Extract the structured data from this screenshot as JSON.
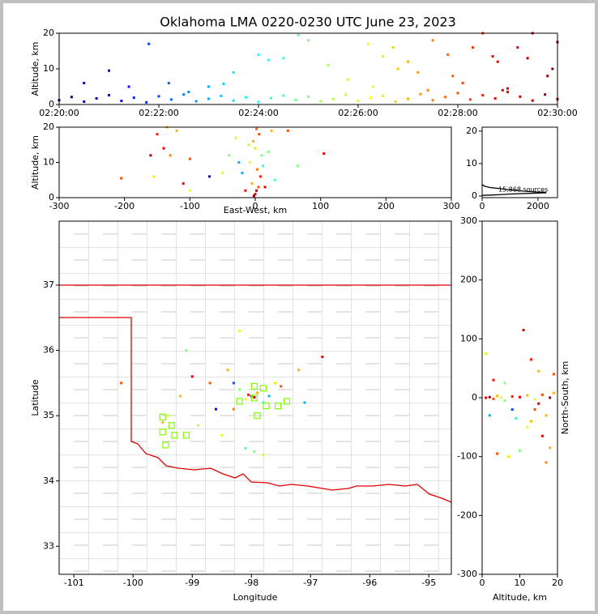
{
  "chart_data": [
    {
      "type": "scatter",
      "title": "Oklahoma LMA 0220-0230 UTC June 23, 2023",
      "ylabel": "Altitude, km",
      "colormap": "jet",
      "xlim": [
        0,
        10
      ],
      "xticks": [
        {
          "value": 0,
          "label": "02:20:00"
        },
        {
          "value": 2,
          "label": "02:22:00"
        },
        {
          "value": 4,
          "label": "02:24:00"
        },
        {
          "value": 6,
          "label": "02:26:00"
        },
        {
          "value": 8,
          "label": "02:28:00"
        },
        {
          "value": 10,
          "label": "02:30:00"
        }
      ],
      "ylim": [
        0,
        20
      ],
      "yticks": [
        0,
        10,
        20
      ],
      "series": [
        {
          "x": [
            0,
            0.25,
            0.5,
            0.75,
            1,
            1.25,
            1.5,
            1.75,
            2,
            2.25,
            2.5,
            2.75,
            3,
            3.25,
            3.5,
            3.75,
            4,
            4.25,
            4.5,
            4.75,
            5,
            5.25,
            5.5,
            5.75,
            6,
            6.25,
            6.5,
            6.75,
            7,
            7.25,
            7.5,
            7.75,
            8,
            8.25,
            8.5,
            8.75,
            9,
            9.25,
            9.5,
            9.75,
            10,
            0.5,
            1,
            1.8,
            2.2,
            3,
            3.5,
            4,
            4.5,
            4.8,
            5.4,
            5.8,
            6.2,
            6.8,
            7.5,
            7.2,
            7.9,
            8.3,
            8.5,
            8.8,
            9,
            9.2,
            9.5,
            9.8,
            10,
            6.5,
            7,
            7.8,
            6.7,
            8.1,
            8.7,
            5,
            4.2,
            3.3,
            2.6,
            1.4,
            9.4,
            9.9,
            6.3,
            7.4,
            8.9
          ],
          "values": [
            1.2,
            2.1,
            0.8,
            1.7,
            2.6,
            1.0,
            1.9,
            0.6,
            2.3,
            1.4,
            2.8,
            0.9,
            1.6,
            2.4,
            1.1,
            2.0,
            0.7,
            1.8,
            2.5,
            1.3,
            2.2,
            0.9,
            1.5,
            2.7,
            1.0,
            1.9,
            2.4,
            0.8,
            1.6,
            2.9,
            1.2,
            2.1,
            3.2,
            1.4,
            2.6,
            1.7,
            3.5,
            2.2,
            1.1,
            2.8,
            1.5,
            6,
            9.5,
            17,
            6,
            5,
            9,
            14,
            13,
            19.5,
            11,
            7,
            17,
            10,
            18,
            9,
            8,
            16,
            20,
            12,
            4.5,
            16,
            20,
            8,
            17.5,
            13.5,
            12,
            14,
            16,
            6,
            13.5,
            18,
            12.5,
            5.8,
            3.5,
            5,
            13,
            10,
            5,
            4,
            4
          ]
        }
      ]
    },
    {
      "type": "scatter",
      "xlabel": "East-West, km",
      "ylabel": "Altitude, km",
      "colormap": "jet",
      "xlim": [
        -300,
        300
      ],
      "xticks": [
        -300,
        -200,
        -100,
        0,
        100,
        200,
        300
      ],
      "ylim": [
        0,
        20
      ],
      "yticks": [
        0,
        10,
        20
      ],
      "series": [
        {
          "x": [
            0,
            2,
            -2,
            5,
            -5,
            8,
            3,
            -8,
            10,
            0,
            -3,
            6,
            2,
            -10,
            12,
            20,
            25,
            -20,
            -30,
            -150,
            -140,
            -130,
            -155,
            -120,
            -100,
            -205,
            -110,
            -70,
            -50,
            -40,
            -25,
            50,
            65,
            105,
            -135,
            -160,
            -100,
            15,
            -15,
            30
          ],
          "values": [
            1,
            2,
            0.5,
            3,
            4,
            6,
            8,
            10,
            12,
            14,
            16,
            18,
            19.5,
            15,
            9,
            13,
            19,
            7,
            17,
            18,
            14,
            12,
            6,
            19,
            2,
            5.5,
            4,
            6,
            7,
            12,
            10,
            19,
            9,
            12.5,
            20,
            12,
            11,
            3,
            2,
            5
          ],
          "t": [
            9,
            9.5,
            9.8,
            8,
            7,
            8.5,
            7.5,
            6,
            5,
            6.5,
            7,
            8,
            7.8,
            5.5,
            4,
            5,
            7,
            3,
            6,
            8.5,
            9,
            7.5,
            6.5,
            7,
            6,
            8,
            9,
            1,
            6,
            5,
            3,
            8,
            5,
            9,
            7,
            9.5,
            8,
            9,
            8.7,
            4.5
          ]
        }
      ]
    },
    {
      "type": "line",
      "annotation": "15,868 sources",
      "xlim": [
        0,
        2700
      ],
      "xticks": [
        0,
        2000
      ],
      "ylim": [
        -0.5,
        21.2
      ],
      "yticks": [
        0,
        10,
        20
      ],
      "series": [
        {
          "color": "#000000",
          "x": [
            0,
            100,
            300,
            600,
            1000,
            1500,
            2000,
            2300
          ],
          "values": [
            3.5,
            3,
            2.6,
            2.3,
            1.9,
            1.5,
            1.2,
            1.1
          ]
        },
        {
          "color": "#000000",
          "x": [
            0,
            300,
            600,
            1000,
            1600,
            2300
          ],
          "values": [
            0.2,
            0.3,
            0.4,
            0.6,
            0.8,
            1
          ]
        }
      ]
    },
    {
      "type": "scatter",
      "xlabel": "Longitude",
      "ylabel": "Latitude",
      "colormap": "jet",
      "xlim": [
        -101.25,
        -94.62
      ],
      "xticks": [
        -101,
        -100,
        -99,
        -98,
        -97,
        -96,
        -95
      ],
      "ylim": [
        32.57,
        37.98
      ],
      "yticks": [
        33,
        34,
        35,
        36,
        37
      ],
      "series": [
        {
          "x": [
            -98,
            -97.95,
            -98.05,
            -97.9,
            -98.1,
            -98.2,
            -97.8,
            -97.7,
            -98.3,
            -97.6,
            -98.1,
            -97.95,
            -97.8,
            -98.7,
            -98.4,
            -99,
            -99.1,
            -98.2,
            -100.2,
            -99.4,
            -99.5,
            -98.6,
            -98.9,
            -97.2,
            -96.8,
            -97.1,
            -98.5,
            -97.5,
            -99.2,
            -98.3
          ],
          "values": [
            35.3,
            35.28,
            35.32,
            35.35,
            35.25,
            35.4,
            35.2,
            35.3,
            35.1,
            35.5,
            34.5,
            34.45,
            34.4,
            35.5,
            35.7,
            35.6,
            36,
            36.3,
            35.5,
            35,
            34.9,
            35.1,
            34.85,
            35.7,
            35.9,
            35.2,
            34.7,
            35.45,
            35.3,
            35.5
          ],
          "t": [
            9,
            9.5,
            8.5,
            7,
            6,
            5,
            4,
            3,
            7.5,
            6.5,
            4.5,
            5,
            6,
            8,
            7,
            9,
            5,
            6,
            8,
            6,
            7,
            1,
            5.5,
            7,
            9,
            3,
            6,
            8,
            7,
            2
          ]
        },
        {
          "marker": "square",
          "color": "#7fff00",
          "x": [
            -99.5,
            -99.45,
            -99.35,
            -99.3,
            -99.1,
            -99.5,
            -98.2,
            -97.95,
            -97.8,
            -97.75,
            -97.55,
            -97.4,
            -97.9,
            -97.95
          ],
          "values": [
            34.75,
            34.55,
            34.85,
            34.7,
            34.7,
            34.98,
            35.22,
            35.45,
            35.42,
            35.15,
            35.15,
            35.22,
            35,
            35.27
          ]
        }
      ]
    },
    {
      "type": "scatter",
      "xlabel": "Altitude, km",
      "ylabel": "North-South, km",
      "colormap": "jet",
      "xlim": [
        0,
        20
      ],
      "xticks": [
        0,
        10,
        20
      ],
      "ylim": [
        -300,
        300
      ],
      "yticks": [
        -300,
        -200,
        -100,
        0,
        100,
        200,
        300
      ],
      "series": [
        {
          "x": [
            1,
            2,
            3,
            4,
            5,
            6,
            8,
            10,
            12,
            14,
            16,
            18,
            19,
            10,
            11,
            13,
            15,
            17,
            7,
            4,
            1,
            3,
            12,
            14,
            16,
            18,
            19,
            9,
            6,
            2,
            8,
            13,
            15,
            17
          ],
          "values": [
            0,
            1,
            -2,
            3,
            0,
            -5,
            2,
            1,
            4,
            -3,
            5,
            0,
            8,
            -90,
            115,
            65,
            45,
            -110,
            -100,
            -95,
            75,
            30,
            -50,
            -20,
            -65,
            -85,
            40,
            -35,
            25,
            -30,
            -20,
            -40,
            -10,
            -30
          ],
          "t": [
            9,
            9.5,
            8,
            7,
            6,
            5,
            8.5,
            9,
            7,
            6,
            8,
            9.8,
            7,
            5,
            9,
            8.5,
            7,
            7.5,
            6.5,
            8,
            6,
            8.7,
            6,
            8,
            9,
            7,
            8,
            4,
            5,
            3,
            2,
            7,
            9.2,
            7
          ]
        }
      ]
    }
  ]
}
